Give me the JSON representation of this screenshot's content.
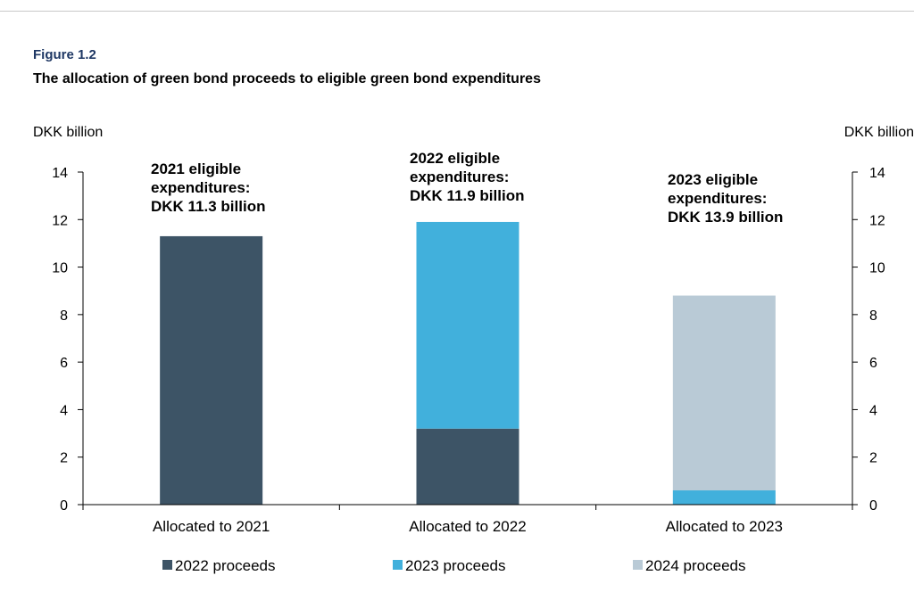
{
  "figure": {
    "label": "Figure 1.2",
    "title": "The allocation of green bond proceeds to eligible green bond expenditures"
  },
  "chart_data": {
    "type": "bar",
    "stacked": true,
    "categories": [
      "Allocated to 2021",
      "Allocated to 2022",
      "Allocated to 2023"
    ],
    "series": [
      {
        "name": "2022 proceeds",
        "color": "#3d5466",
        "values": [
          11.3,
          3.2,
          0
        ]
      },
      {
        "name": "2023 proceeds",
        "color": "#41b0dc",
        "values": [
          0,
          8.7,
          0.6
        ]
      },
      {
        "name": "2024 proceeds",
        "color": "#b9cad6",
        "values": [
          0,
          0,
          8.2
        ]
      }
    ],
    "ylabel_left": "DKK billion",
    "ylabel_right": "DKK billion",
    "ylim": [
      0,
      14
    ],
    "yticks": [
      0,
      2,
      4,
      6,
      8,
      10,
      12,
      14
    ],
    "annotations": [
      {
        "lines": [
          "2021 eligible",
          "expenditures:",
          "DKK 11.3 billion"
        ]
      },
      {
        "lines": [
          "2022 eligible",
          "expenditures:",
          "DKK 11.9 billion"
        ]
      },
      {
        "lines": [
          "2023 eligible",
          "expenditures:",
          "DKK 13.9 billion"
        ]
      }
    ],
    "legend_position": "bottom",
    "grid": false
  }
}
